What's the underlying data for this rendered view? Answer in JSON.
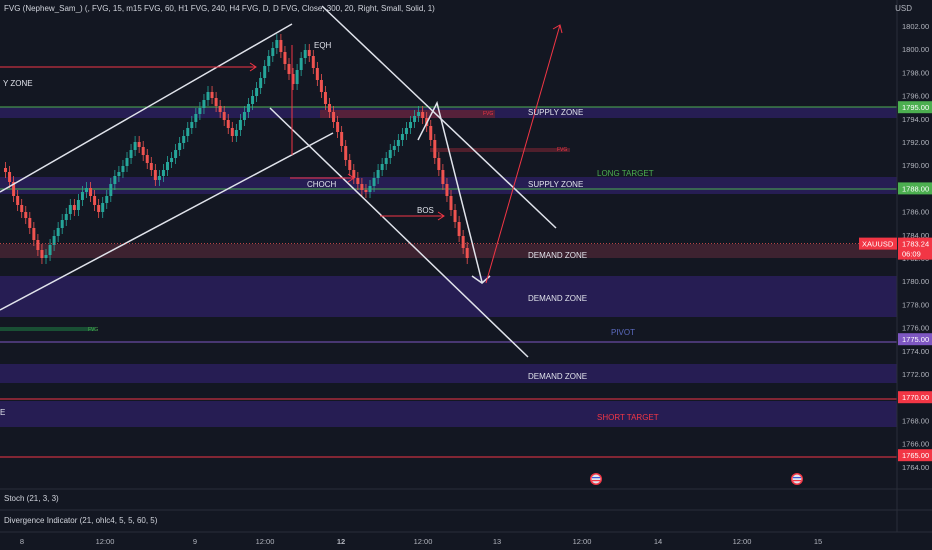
{
  "header": {
    "indicator": "FVG (Nephew_Sam_) (, FVG, 15, m15 FVG, 60, H1 FVG, 240, H4 FVG, D, D FVG, Close, 300, 20, Right, Small, Solid, 1)",
    "currency": "USD"
  },
  "price_axis": {
    "ticks": [
      "1802.00",
      "1800.00",
      "1798.00",
      "1796.00",
      "1794.00",
      "1792.00",
      "1790.00",
      "1788.00",
      "1786.00",
      "1784.00",
      "1782.00",
      "1780.00",
      "1778.00",
      "1776.00",
      "1774.00",
      "1772.00",
      "1770.00",
      "1768.00",
      "1766.00",
      "1764.00"
    ],
    "badges": [
      {
        "text": "1795.00",
        "color": "#4caf50"
      },
      {
        "text": "1788.00",
        "color": "#4caf50"
      },
      {
        "text": "1775.00",
        "color": "#7e57c2"
      },
      {
        "text": "1770.00",
        "color": "#f23645"
      },
      {
        "text": "1765.00",
        "color": "#f23645"
      }
    ],
    "symbol": "XAUUSD",
    "last_price": "1783.24",
    "countdown": "06:09"
  },
  "time_axis": {
    "ticks": [
      "8",
      "12:00",
      "9",
      "12:00",
      "12",
      "12:00",
      "13",
      "12:00",
      "14",
      "12:00",
      "15"
    ]
  },
  "labels": {
    "supply_zone_left": "Y ZONE",
    "supply_zone_1": "SUPPLY ZONE",
    "supply_zone_2": "SUPPLY ZONE",
    "long_target": "LONG TARGET",
    "demand_zone_1": "DEMAND ZONE",
    "demand_zone_2": "DEMAND ZONE",
    "demand_zone_3": "DEMAND ZONE",
    "pivot": "PIVOT",
    "short_target": "SHORT TARGET",
    "eqh": "EQH",
    "choch": "CHOCH",
    "bos": "BOS",
    "fvg": "FVG",
    "left_e": "E"
  },
  "panels": {
    "stoch": "Stoch (21, 3, 3)",
    "divergence": "Divergence Indicator (21, ohlc4, 5, 5, 60, 5)"
  },
  "colors": {
    "background": "#131722",
    "up": "#26a69a",
    "down": "#ef5350",
    "zone": "#2a1f5c",
    "green_line": "#4caf50",
    "red_line": "#f23645",
    "pivot_line": "#7e57c2"
  }
}
